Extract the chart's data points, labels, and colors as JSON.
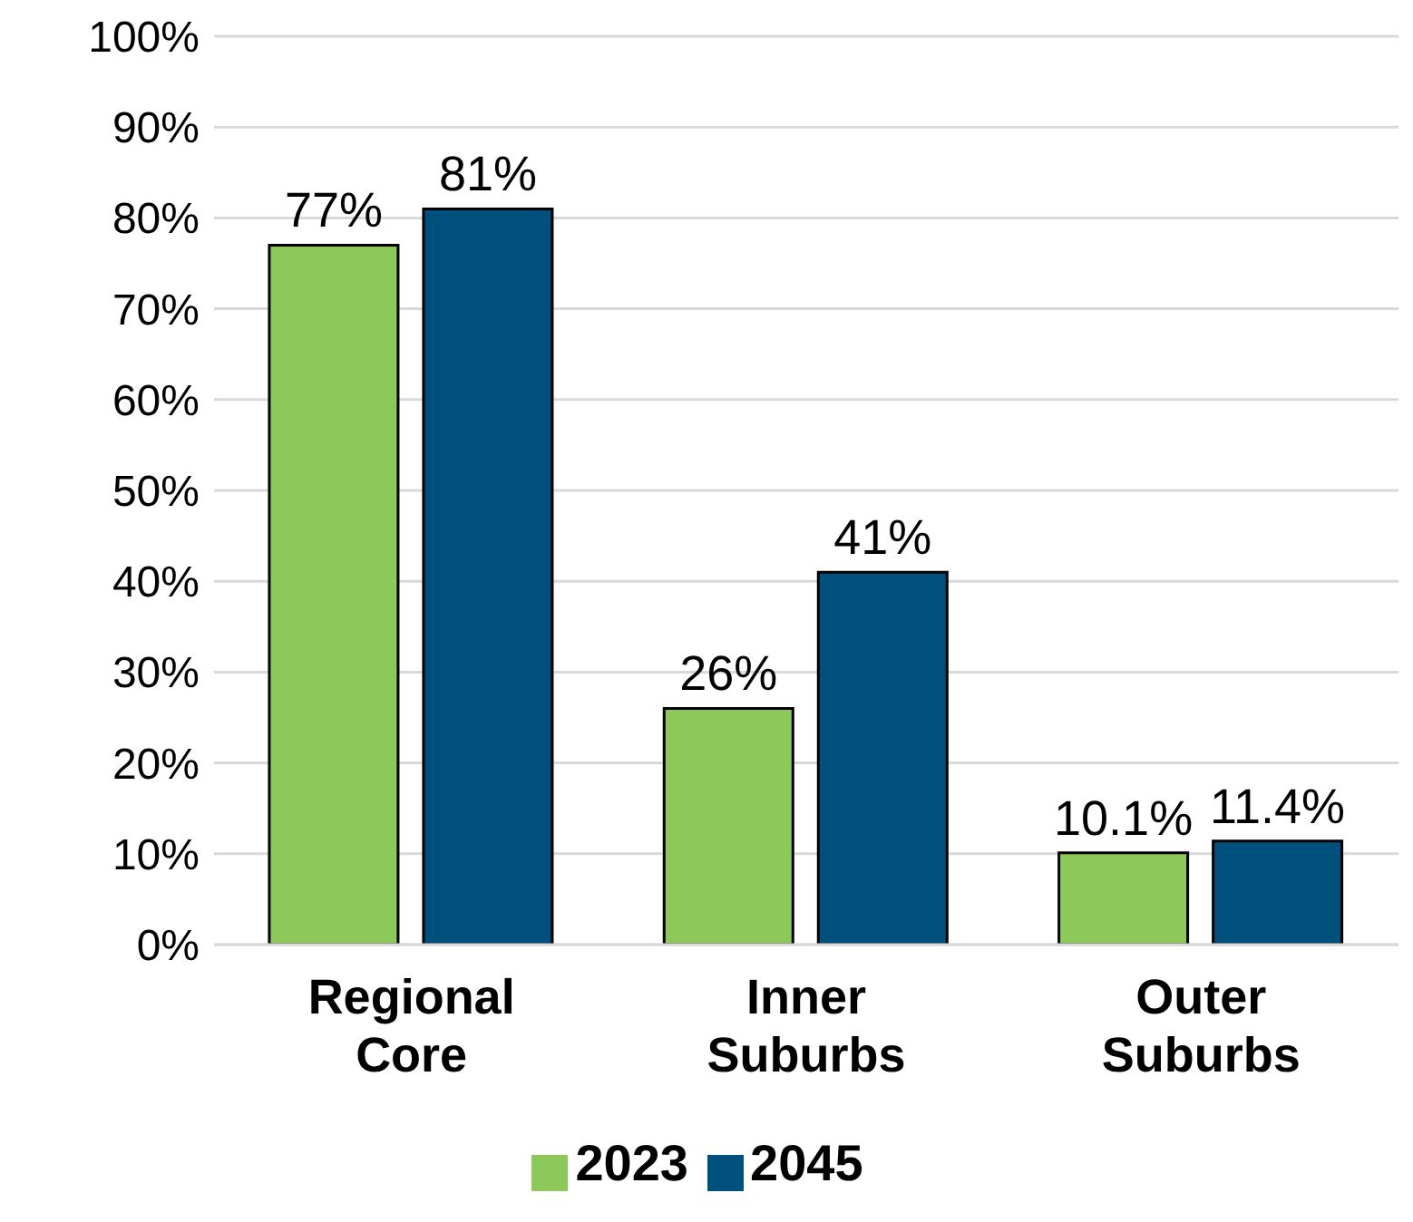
{
  "chart_data": {
    "type": "bar",
    "categories": [
      "Regional Core",
      "Inner Suburbs",
      "Outer Suburbs"
    ],
    "series": [
      {
        "name": "2023",
        "color": "#8cc85a",
        "values": [
          77,
          26,
          10.1
        ],
        "value_labels": [
          "77%",
          "26%",
          "10.1%"
        ]
      },
      {
        "name": "2045",
        "color": "#00507d",
        "values": [
          81,
          41,
          11.4
        ],
        "value_labels": [
          "81%",
          "41%",
          "11.4%"
        ]
      }
    ],
    "ylim": [
      0,
      100
    ],
    "yticks": [
      {
        "value": 0,
        "label": "0%"
      },
      {
        "value": 10,
        "label": "10%"
      },
      {
        "value": 20,
        "label": "20%"
      },
      {
        "value": 30,
        "label": "30%"
      },
      {
        "value": 40,
        "label": "40%"
      },
      {
        "value": 50,
        "label": "50%"
      },
      {
        "value": 60,
        "label": "60%"
      },
      {
        "value": 70,
        "label": "70%"
      },
      {
        "value": 80,
        "label": "80%"
      },
      {
        "value": 90,
        "label": "90%"
      },
      {
        "value": 100,
        "label": "100%"
      }
    ],
    "grid": "y",
    "legend": "bottom"
  }
}
